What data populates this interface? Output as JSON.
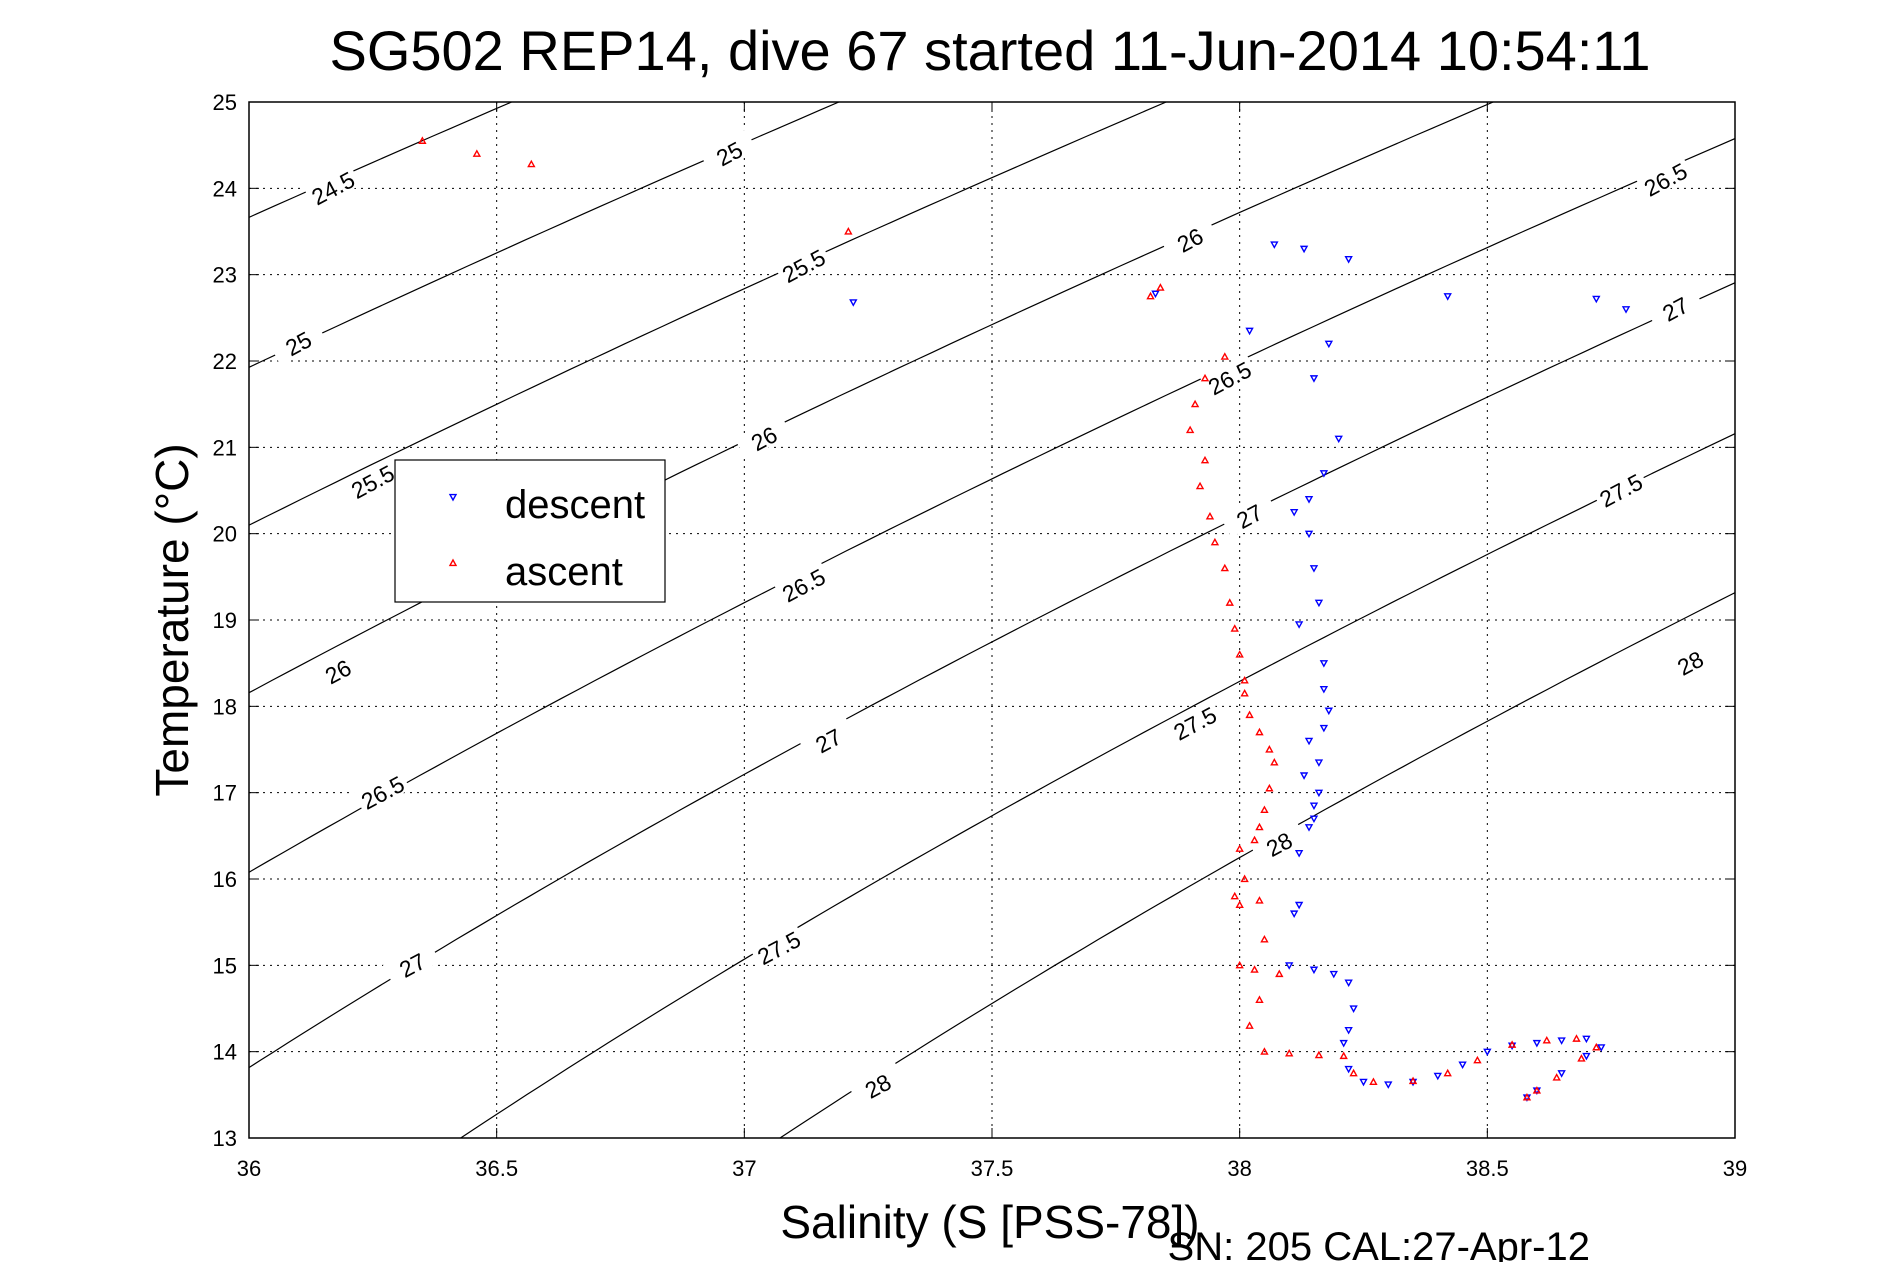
{
  "chart_data": {
    "type": "scatter",
    "title": "SG502 REP14, dive 67 started 11-Jun-2014 10:54:11",
    "xlabel": "Salinity (S [PSS-78])",
    "ylabel": "Temperature (°C)",
    "footer": "SN: 205  CAL:27-Apr-12",
    "xlim": [
      36,
      39
    ],
    "ylim": [
      13,
      25
    ],
    "xticks": [
      "36",
      "36.5",
      "37",
      "37.5",
      "38",
      "38.5",
      "39"
    ],
    "yticks": [
      "13",
      "14",
      "15",
      "16",
      "17",
      "18",
      "19",
      "20",
      "21",
      "22",
      "23",
      "24",
      "25"
    ],
    "grid": true,
    "legend_position": "upper-left",
    "density_contours": {
      "levels": [
        24.5,
        25,
        25.5,
        26,
        26.5,
        27,
        27.5,
        28
      ],
      "color": "#000000"
    },
    "contour_labels": [
      {
        "text": "24.5",
        "s": 36.17,
        "t": 24.0
      },
      {
        "text": "25",
        "s": 36.1,
        "t": 22.2
      },
      {
        "text": "25.5",
        "s": 36.25,
        "t": 20.6
      },
      {
        "text": "26",
        "s": 36.18,
        "t": 18.4
      },
      {
        "text": "26.5",
        "s": 36.27,
        "t": 17.0
      },
      {
        "text": "27",
        "s": 36.33,
        "t": 15.0
      },
      {
        "text": "25",
        "s": 36.97,
        "t": 24.4
      },
      {
        "text": "25.5",
        "s": 37.12,
        "t": 23.1
      },
      {
        "text": "26",
        "s": 37.04,
        "t": 21.1
      },
      {
        "text": "26.5",
        "s": 37.12,
        "t": 19.4
      },
      {
        "text": "27",
        "s": 37.17,
        "t": 17.6
      },
      {
        "text": "27.5",
        "s": 37.07,
        "t": 15.2
      },
      {
        "text": "28",
        "s": 37.27,
        "t": 13.6
      },
      {
        "text": "26",
        "s": 37.9,
        "t": 23.4
      },
      {
        "text": "26.5",
        "s": 37.98,
        "t": 21.8
      },
      {
        "text": "27",
        "s": 38.02,
        "t": 20.2
      },
      {
        "text": "27.5",
        "s": 37.91,
        "t": 17.8
      },
      {
        "text": "28",
        "s": 38.08,
        "t": 16.4
      },
      {
        "text": "26.5",
        "s": 38.86,
        "t": 24.1
      },
      {
        "text": "27",
        "s": 38.88,
        "t": 22.6
      },
      {
        "text": "27.5",
        "s": 38.77,
        "t": 20.5
      },
      {
        "text": "28",
        "s": 38.91,
        "t": 18.5
      }
    ],
    "series": [
      {
        "name": "descent",
        "color": "#0000ff",
        "marker": "triangle-down",
        "points": [
          [
            37.22,
            22.68
          ],
          [
            37.83,
            22.78
          ],
          [
            38.07,
            23.35
          ],
          [
            38.13,
            23.3
          ],
          [
            38.22,
            23.18
          ],
          [
            38.42,
            22.75
          ],
          [
            38.72,
            22.72
          ],
          [
            38.78,
            22.6
          ],
          [
            38.02,
            22.35
          ],
          [
            38.18,
            22.2
          ],
          [
            38.15,
            21.8
          ],
          [
            38.2,
            21.1
          ],
          [
            38.17,
            20.7
          ],
          [
            38.14,
            20.4
          ],
          [
            38.11,
            20.25
          ],
          [
            38.14,
            20.0
          ],
          [
            38.15,
            19.6
          ],
          [
            38.16,
            19.2
          ],
          [
            38.12,
            18.95
          ],
          [
            38.17,
            18.5
          ],
          [
            38.17,
            18.2
          ],
          [
            38.18,
            17.95
          ],
          [
            38.17,
            17.75
          ],
          [
            38.14,
            17.6
          ],
          [
            38.16,
            17.35
          ],
          [
            38.13,
            17.2
          ],
          [
            38.16,
            17.0
          ],
          [
            38.15,
            16.85
          ],
          [
            38.15,
            16.7
          ],
          [
            38.12,
            16.3
          ],
          [
            38.14,
            16.6
          ],
          [
            38.12,
            15.7
          ],
          [
            38.11,
            15.6
          ],
          [
            38.1,
            15.0
          ],
          [
            38.15,
            14.95
          ],
          [
            38.19,
            14.9
          ],
          [
            38.22,
            14.8
          ],
          [
            38.23,
            14.5
          ],
          [
            38.22,
            14.25
          ],
          [
            38.21,
            14.1
          ],
          [
            38.22,
            13.8
          ],
          [
            38.25,
            13.65
          ],
          [
            38.3,
            13.62
          ],
          [
            38.35,
            13.65
          ],
          [
            38.4,
            13.72
          ],
          [
            38.45,
            13.85
          ],
          [
            38.5,
            14.0
          ],
          [
            38.55,
            14.07
          ],
          [
            38.6,
            14.1
          ],
          [
            38.65,
            14.13
          ],
          [
            38.7,
            14.15
          ],
          [
            38.73,
            14.05
          ],
          [
            38.7,
            13.95
          ],
          [
            38.65,
            13.75
          ],
          [
            38.6,
            13.55
          ],
          [
            38.58,
            13.47
          ]
        ]
      },
      {
        "name": "ascent",
        "color": "#ff0000",
        "marker": "triangle-up",
        "points": [
          [
            36.35,
            24.55
          ],
          [
            36.46,
            24.4
          ],
          [
            36.57,
            24.28
          ],
          [
            37.21,
            23.5
          ],
          [
            37.84,
            22.85
          ],
          [
            37.82,
            22.75
          ],
          [
            37.97,
            22.05
          ],
          [
            37.93,
            21.8
          ],
          [
            37.91,
            21.5
          ],
          [
            37.9,
            21.2
          ],
          [
            37.93,
            20.85
          ],
          [
            37.92,
            20.55
          ],
          [
            37.94,
            20.2
          ],
          [
            37.95,
            19.9
          ],
          [
            37.97,
            19.6
          ],
          [
            37.98,
            19.2
          ],
          [
            37.99,
            18.9
          ],
          [
            38.0,
            18.6
          ],
          [
            38.01,
            18.3
          ],
          [
            38.01,
            18.15
          ],
          [
            38.02,
            17.9
          ],
          [
            38.04,
            17.7
          ],
          [
            38.06,
            17.5
          ],
          [
            38.07,
            17.35
          ],
          [
            38.06,
            17.05
          ],
          [
            38.05,
            16.8
          ],
          [
            38.04,
            16.6
          ],
          [
            38.03,
            16.45
          ],
          [
            38.0,
            16.35
          ],
          [
            38.01,
            16.0
          ],
          [
            37.99,
            15.8
          ],
          [
            38.0,
            15.7
          ],
          [
            38.04,
            15.75
          ],
          [
            38.05,
            15.3
          ],
          [
            38.0,
            15.0
          ],
          [
            38.03,
            14.95
          ],
          [
            38.08,
            14.9
          ],
          [
            38.04,
            14.6
          ],
          [
            38.02,
            14.3
          ],
          [
            38.05,
            14.0
          ],
          [
            38.1,
            13.98
          ],
          [
            38.16,
            13.96
          ],
          [
            38.21,
            13.95
          ],
          [
            38.23,
            13.75
          ],
          [
            38.27,
            13.65
          ],
          [
            38.35,
            13.66
          ],
          [
            38.42,
            13.75
          ],
          [
            38.48,
            13.9
          ],
          [
            38.55,
            14.08
          ],
          [
            38.62,
            14.13
          ],
          [
            38.68,
            14.15
          ],
          [
            38.72,
            14.05
          ],
          [
            38.69,
            13.92
          ],
          [
            38.64,
            13.7
          ],
          [
            38.6,
            13.55
          ],
          [
            38.58,
            13.47
          ]
        ]
      }
    ]
  }
}
